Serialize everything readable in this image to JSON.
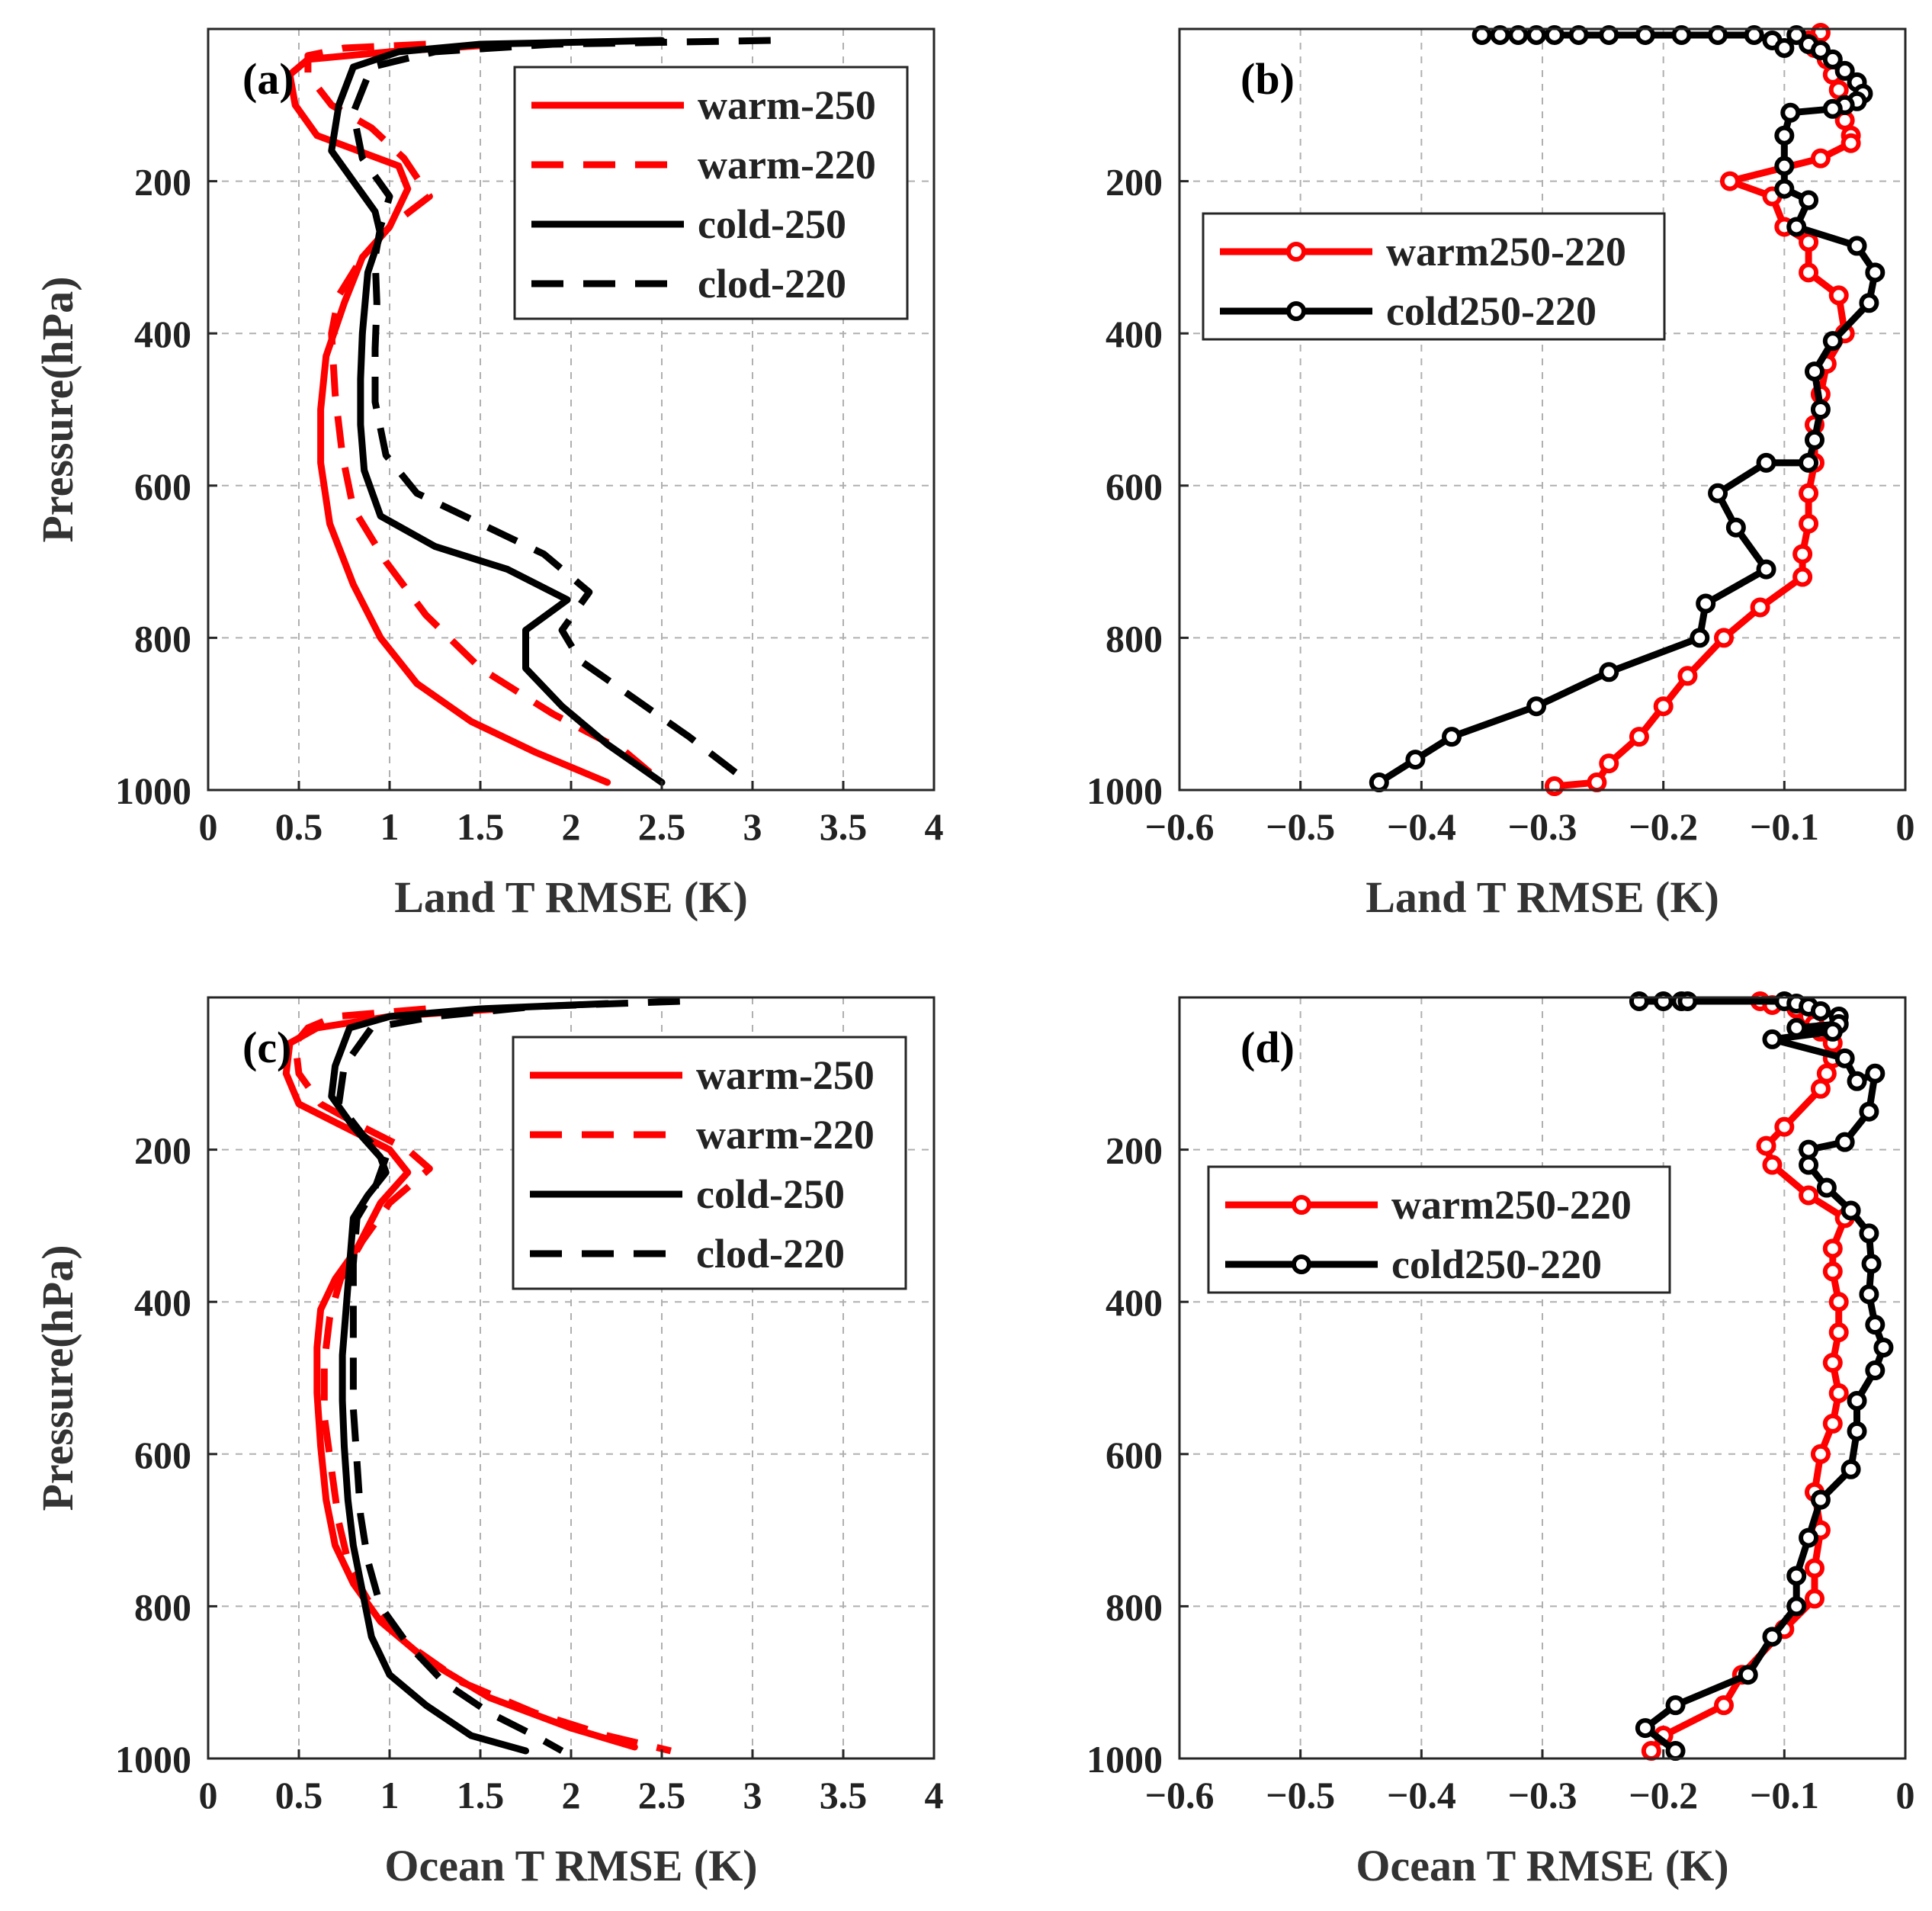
{
  "chart_data": [
    {
      "id": "a",
      "panel_label": "(a)",
      "type": "line",
      "xlabel": "Land T RMSE (K)",
      "ylabel": "Pressure(hPa)",
      "xlim": [
        0,
        4
      ],
      "ylim": [
        0,
        1000
      ],
      "y_reversed": true,
      "grid": true,
      "legend_position": "top-right",
      "xticks": [
        0,
        0.5,
        1,
        1.5,
        2,
        2.5,
        3,
        3.5,
        4
      ],
      "xtick_labels": [
        "0",
        "0.5",
        "1",
        "1.5",
        "2",
        "2.5",
        "3",
        "3.5",
        "4"
      ],
      "yticks": [
        200,
        400,
        600,
        800,
        1000
      ],
      "ytick_labels": [
        "200",
        "400",
        "600",
        "800",
        "1000"
      ],
      "series": [
        {
          "name": "warm-250",
          "color": "#ff0000",
          "dash": "solid",
          "markers": false,
          "x": [
            1.62,
            1.0,
            0.55,
            0.45,
            0.48,
            0.6,
            1.05,
            1.1,
            1.0,
            0.85,
            0.75,
            0.65,
            0.62,
            0.62,
            0.67,
            0.8,
            0.95,
            1.15,
            1.45,
            1.8,
            2.2
          ],
          "y": [
            20,
            30,
            40,
            60,
            100,
            140,
            180,
            210,
            260,
            300,
            360,
            430,
            500,
            570,
            650,
            730,
            800,
            860,
            910,
            950,
            990
          ]
        },
        {
          "name": "warm-220",
          "color": "#ff0000",
          "dash": "dashed",
          "markers": false,
          "x": [
            1.2,
            0.75,
            0.55,
            0.55,
            0.68,
            0.9,
            1.08,
            1.22,
            1.0,
            0.85,
            0.72,
            0.68,
            0.7,
            0.74,
            0.8,
            0.98,
            1.2,
            1.5,
            1.9,
            2.3,
            2.5
          ],
          "y": [
            20,
            25,
            35,
            60,
            100,
            130,
            170,
            220,
            260,
            300,
            350,
            400,
            480,
            560,
            630,
            700,
            770,
            840,
            900,
            950,
            990
          ]
        },
        {
          "name": "cold-250",
          "color": "#000000",
          "dash": "solid",
          "markers": false,
          "x": [
            2.5,
            1.5,
            1.05,
            0.8,
            0.72,
            0.68,
            0.8,
            0.92,
            0.95,
            0.88,
            0.85,
            0.84,
            0.84,
            0.86,
            0.95,
            1.25,
            1.65,
            1.98,
            1.75,
            1.75,
            1.95,
            2.2,
            2.5
          ],
          "y": [
            15,
            20,
            30,
            50,
            100,
            160,
            200,
            240,
            270,
            320,
            400,
            460,
            520,
            580,
            640,
            680,
            710,
            750,
            790,
            840,
            890,
            940,
            990
          ]
        },
        {
          "name": "clod-220",
          "color": "#000000",
          "dash": "dashed",
          "markers": false,
          "x": [
            3.1,
            1.9,
            1.25,
            0.9,
            0.8,
            0.85,
            1.0,
            0.95,
            0.92,
            0.93,
            0.92,
            0.92,
            0.98,
            1.15,
            1.5,
            1.85,
            2.1,
            1.95,
            2.05,
            2.35,
            2.65,
            2.95
          ],
          "y": [
            15,
            20,
            30,
            50,
            110,
            170,
            220,
            260,
            300,
            360,
            420,
            490,
            560,
            610,
            650,
            690,
            740,
            790,
            830,
            880,
            930,
            985
          ]
        }
      ]
    },
    {
      "id": "b",
      "panel_label": "(b)",
      "type": "line",
      "xlabel": "Land T RMSE (K)",
      "ylabel": "",
      "xlim": [
        -0.6,
        0
      ],
      "ylim": [
        0,
        1000
      ],
      "y_reversed": true,
      "grid": true,
      "legend_position": "middle-left",
      "xticks": [
        -0.6,
        -0.5,
        -0.4,
        -0.3,
        -0.2,
        -0.1,
        0
      ],
      "xtick_labels": [
        "−0.6",
        "−0.5",
        "−0.4",
        "−0.3",
        "−0.2",
        "−0.1",
        "0"
      ],
      "yticks": [
        200,
        400,
        600,
        800,
        1000
      ],
      "ytick_labels": [
        "200",
        "400",
        "600",
        "800",
        "1000"
      ],
      "series": [
        {
          "name": "warm250-220",
          "color": "#ff0000",
          "dash": "solid",
          "markers": true,
          "x": [
            -0.07,
            -0.08,
            -0.075,
            -0.065,
            -0.06,
            -0.055,
            -0.05,
            -0.05,
            -0.045,
            -0.045,
            -0.07,
            -0.145,
            -0.11,
            -0.1,
            -0.08,
            -0.08,
            -0.055,
            -0.05,
            -0.065,
            -0.07,
            -0.075,
            -0.075,
            -0.08,
            -0.08,
            -0.085,
            -0.085,
            -0.12,
            -0.15,
            -0.18,
            -0.2,
            -0.22,
            -0.245,
            -0.255,
            -0.29
          ],
          "y": [
            5,
            15,
            25,
            40,
            60,
            80,
            100,
            120,
            140,
            150,
            170,
            200,
            220,
            260,
            280,
            320,
            350,
            400,
            440,
            480,
            520,
            570,
            610,
            650,
            690,
            720,
            760,
            800,
            850,
            890,
            930,
            965,
            990,
            995
          ]
        },
        {
          "name": "cold250-220",
          "color": "#000000",
          "dash": "solid",
          "markers": true,
          "x": [
            -0.35,
            -0.335,
            -0.32,
            -0.305,
            -0.29,
            -0.27,
            -0.245,
            -0.215,
            -0.185,
            -0.155,
            -0.125,
            -0.11,
            -0.1,
            -0.09,
            -0.08,
            -0.07,
            -0.06,
            -0.05,
            -0.04,
            -0.035,
            -0.04,
            -0.05,
            -0.06,
            -0.095,
            -0.1,
            -0.1,
            -0.1,
            -0.08,
            -0.09,
            -0.04,
            -0.025,
            -0.03,
            -0.06,
            -0.075,
            -0.07,
            -0.075,
            -0.08,
            -0.115,
            -0.155,
            -0.14,
            -0.115,
            -0.165,
            -0.17,
            -0.245,
            -0.305,
            -0.375,
            -0.405,
            -0.435
          ],
          "y": [
            8,
            8,
            8,
            8,
            8,
            8,
            8,
            8,
            8,
            8,
            8,
            15,
            25,
            8,
            20,
            28,
            40,
            55,
            70,
            85,
            95,
            100,
            105,
            110,
            140,
            180,
            210,
            225,
            260,
            285,
            320,
            360,
            410,
            450,
            500,
            540,
            570,
            570,
            610,
            655,
            710,
            755,
            800,
            845,
            890,
            930,
            960,
            990
          ]
        }
      ]
    },
    {
      "id": "c",
      "panel_label": "(c)",
      "type": "line",
      "xlabel": "Ocean T RMSE (K)",
      "ylabel": "Pressure(hPa)",
      "xlim": [
        0,
        4
      ],
      "ylim": [
        0,
        1000
      ],
      "y_reversed": true,
      "grid": true,
      "legend_position": "top-right",
      "xticks": [
        0,
        0.5,
        1,
        1.5,
        2,
        2.5,
        3,
        3.5,
        4
      ],
      "xtick_labels": [
        "0",
        "0.5",
        "1",
        "1.5",
        "2",
        "2.5",
        "3",
        "3.5",
        "4"
      ],
      "yticks": [
        200,
        400,
        600,
        800,
        1000
      ],
      "ytick_labels": [
        "200",
        "400",
        "600",
        "800",
        "1000"
      ],
      "series": [
        {
          "name": "warm-250",
          "color": "#ff0000",
          "dash": "solid",
          "markers": false,
          "x": [
            1.6,
            1.0,
            0.6,
            0.45,
            0.43,
            0.5,
            0.75,
            1.0,
            1.1,
            0.95,
            0.82,
            0.7,
            0.62,
            0.6,
            0.6,
            0.62,
            0.65,
            0.7,
            0.8,
            0.95,
            1.2,
            1.55,
            2.0,
            2.35
          ],
          "y": [
            15,
            25,
            40,
            60,
            100,
            140,
            170,
            200,
            230,
            270,
            330,
            370,
            410,
            460,
            520,
            590,
            660,
            720,
            770,
            820,
            870,
            920,
            960,
            985
          ]
        },
        {
          "name": "warm-220",
          "color": "#ff0000",
          "dash": "solid",
          "markers": false,
          "style_note": "dashed",
          "dash_override": "dashed",
          "x": [
            1.2,
            0.7,
            0.55,
            0.48,
            0.5,
            0.62,
            0.85,
            1.1,
            1.22,
            1.0,
            0.85,
            0.73,
            0.67,
            0.64,
            0.64,
            0.68,
            0.72,
            0.78,
            0.9,
            1.1,
            1.4,
            1.8,
            2.2,
            2.55
          ],
          "y": [
            15,
            25,
            40,
            60,
            100,
            140,
            170,
            200,
            225,
            270,
            320,
            370,
            420,
            480,
            550,
            620,
            690,
            750,
            800,
            850,
            900,
            940,
            970,
            990
          ]
        },
        {
          "name": "cold-250",
          "color": "#000000",
          "dash": "solid",
          "markers": false,
          "x": [
            2.2,
            1.5,
            1.0,
            0.78,
            0.7,
            0.68,
            0.8,
            0.95,
            0.98,
            0.88,
            0.8,
            0.78,
            0.76,
            0.74,
            0.74,
            0.75,
            0.77,
            0.8,
            0.85,
            0.9,
            1.0,
            1.2,
            1.45,
            1.75
          ],
          "y": [
            8,
            15,
            25,
            40,
            90,
            130,
            170,
            210,
            230,
            260,
            290,
            350,
            410,
            470,
            530,
            590,
            660,
            720,
            780,
            840,
            890,
            930,
            970,
            990
          ]
        },
        {
          "name": "clod-220",
          "color": "#000000",
          "dash": "dashed",
          "markers": false,
          "x": [
            2.6,
            1.8,
            1.25,
            0.9,
            0.75,
            0.72,
            0.85,
            0.98,
            0.92,
            0.82,
            0.8,
            0.8,
            0.8,
            0.8,
            0.82,
            0.84,
            0.88,
            0.95,
            1.1,
            1.3,
            1.55,
            1.8,
            1.95
          ],
          "y": [
            5,
            12,
            25,
            40,
            90,
            140,
            180,
            210,
            250,
            290,
            350,
            410,
            470,
            540,
            610,
            680,
            740,
            800,
            850,
            900,
            940,
            970,
            990
          ]
        }
      ]
    },
    {
      "id": "d",
      "panel_label": "(d)",
      "type": "line",
      "xlabel": "Ocean T RMSE (K)",
      "ylabel": "",
      "xlim": [
        -0.6,
        0
      ],
      "ylim": [
        0,
        1000
      ],
      "y_reversed": true,
      "grid": true,
      "legend_position": "middle-left",
      "xticks": [
        -0.6,
        -0.5,
        -0.4,
        -0.3,
        -0.2,
        -0.1,
        0
      ],
      "xtick_labels": [
        "−0.6",
        "−0.5",
        "−0.4",
        "−0.3",
        "−0.2",
        "−0.1",
        "0"
      ],
      "yticks": [
        200,
        400,
        600,
        800,
        1000
      ],
      "ytick_labels": [
        "200",
        "400",
        "600",
        "800",
        "1000"
      ],
      "series": [
        {
          "name": "warm250-220",
          "color": "#ff0000",
          "dash": "solid",
          "markers": true,
          "x": [
            -0.12,
            -0.11,
            -0.09,
            -0.08,
            -0.075,
            -0.07,
            -0.06,
            -0.06,
            -0.065,
            -0.07,
            -0.1,
            -0.115,
            -0.11,
            -0.08,
            -0.05,
            -0.06,
            -0.06,
            -0.055,
            -0.055,
            -0.06,
            -0.055,
            -0.06,
            -0.07,
            -0.075,
            -0.07,
            -0.075,
            -0.075,
            -0.1,
            -0.135,
            -0.15,
            -0.2,
            -0.21
          ],
          "y": [
            5,
            10,
            15,
            25,
            35,
            45,
            60,
            80,
            100,
            120,
            170,
            195,
            220,
            260,
            290,
            330,
            360,
            400,
            440,
            480,
            520,
            560,
            600,
            650,
            700,
            750,
            790,
            830,
            890,
            930,
            970,
            990
          ]
        },
        {
          "name": "cold250-220",
          "color": "#000000",
          "dash": "solid",
          "markers": true,
          "x": [
            -0.22,
            -0.2,
            -0.185,
            -0.18,
            -0.1,
            -0.09,
            -0.08,
            -0.07,
            -0.055,
            -0.055,
            -0.09,
            -0.06,
            -0.11,
            -0.05,
            -0.04,
            -0.025,
            -0.03,
            -0.05,
            -0.08,
            -0.08,
            -0.065,
            -0.045,
            -0.03,
            -0.028,
            -0.03,
            -0.025,
            -0.018,
            -0.025,
            -0.04,
            -0.04,
            -0.045,
            -0.07,
            -0.08,
            -0.09,
            -0.09,
            -0.11,
            -0.13,
            -0.19,
            -0.215,
            -0.19
          ],
          "y": [
            5,
            5,
            5,
            5,
            5,
            8,
            12,
            18,
            25,
            35,
            40,
            45,
            55,
            80,
            110,
            100,
            150,
            190,
            200,
            220,
            250,
            280,
            310,
            350,
            390,
            430,
            460,
            490,
            530,
            570,
            620,
            660,
            710,
            760,
            800,
            840,
            890,
            930,
            960,
            990
          ]
        }
      ]
    }
  ]
}
